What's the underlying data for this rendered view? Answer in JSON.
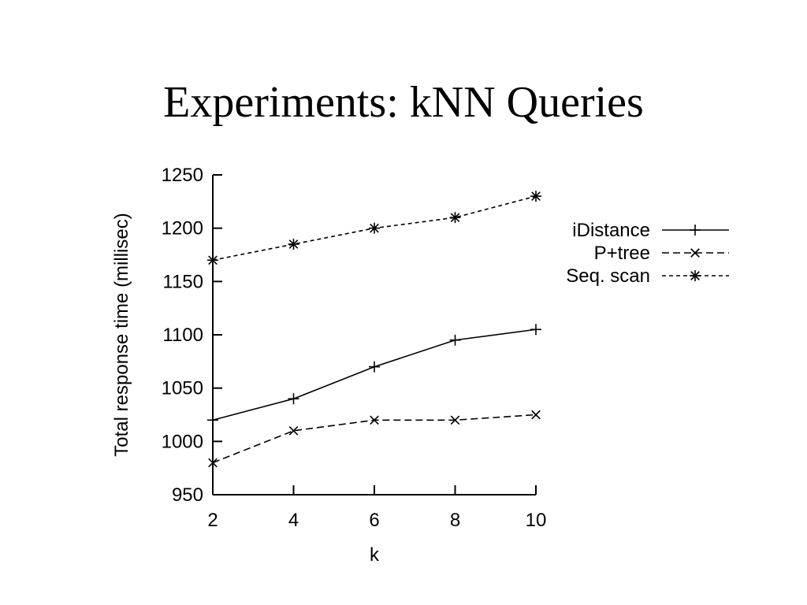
{
  "slide": {
    "title": "Experiments: kNN Queries"
  },
  "chart_data": {
    "type": "line",
    "title": "",
    "xlabel": "k",
    "ylabel": "Total response time (millisec)",
    "x": [
      2,
      4,
      6,
      8,
      10
    ],
    "xlim": [
      2,
      10
    ],
    "ylim": [
      950,
      1250
    ],
    "xticks": [
      "2",
      "4",
      "6",
      "8",
      "10"
    ],
    "yticks": [
      "950",
      "1000",
      "1050",
      "1100",
      "1150",
      "1200",
      "1250"
    ],
    "grid": false,
    "legend_position": "right",
    "series": [
      {
        "name": "iDistance",
        "values": [
          1020,
          1040,
          1070,
          1095,
          1105
        ],
        "line_style": "solid",
        "marker": "plus",
        "color": "#000000"
      },
      {
        "name": "P+tree",
        "values": [
          980,
          1010,
          1020,
          1020,
          1025
        ],
        "line_style": "dashed",
        "marker": "x",
        "color": "#000000"
      },
      {
        "name": "Seq. scan",
        "values": [
          1170,
          1185,
          1200,
          1210,
          1230
        ],
        "line_style": "dotted",
        "marker": "star",
        "color": "#000000"
      }
    ]
  }
}
